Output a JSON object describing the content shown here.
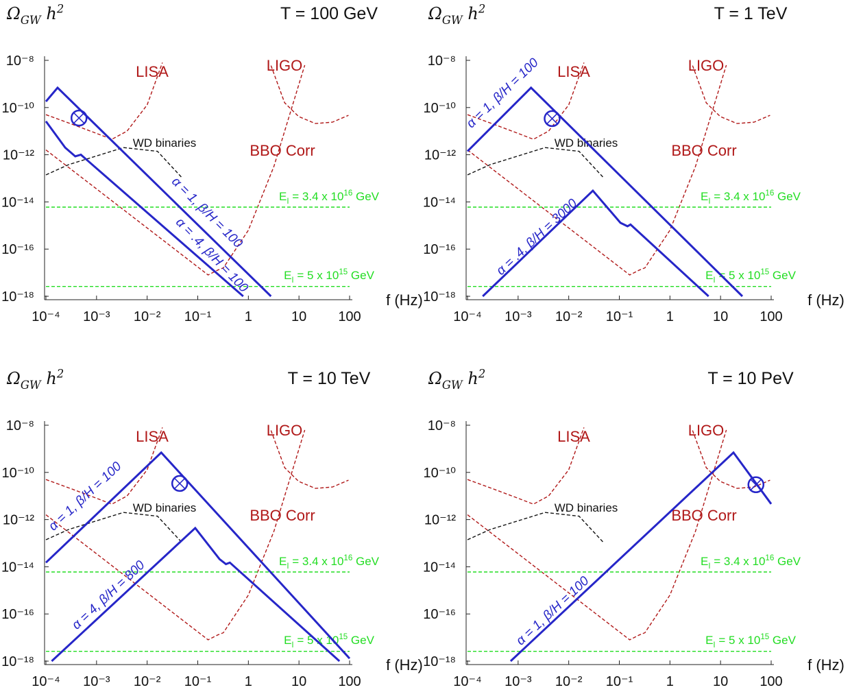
{
  "chart_data": [
    {
      "type": "line",
      "title": "T = 100 GeV",
      "y_label": [
        "Ω",
        "GW",
        " h",
        "2"
      ],
      "x_label": "f (Hz)",
      "xscale": "log",
      "yscale": "log",
      "xlim": [
        0.0001,
        100
      ],
      "ylim": [
        1e-18,
        1e-08
      ],
      "xticks": [
        {
          "value": 0.0001,
          "label": "10⁻⁴"
        },
        {
          "value": 0.001,
          "label": "10⁻³"
        },
        {
          "value": 0.01,
          "label": "10⁻²"
        },
        {
          "value": 0.1,
          "label": "10⁻¹"
        },
        1,
        10,
        100
      ],
      "yticks": [
        {
          "value": 1e-18,
          "label": "10⁻¹⁸"
        },
        {
          "value": 1e-16,
          "label": "10⁻¹⁶"
        },
        {
          "value": 1e-14,
          "label": "10⁻¹⁴"
        },
        {
          "value": 1e-12,
          "label": "10⁻¹²"
        },
        {
          "value": 1e-10,
          "label": "10⁻¹⁰"
        },
        {
          "value": 1e-08,
          "label": "10⁻⁸"
        }
      ],
      "series": [
        {
          "name": "LISA",
          "color": "#b01818",
          "dashed": true,
          "x": [
            0.0001,
            0.00032,
            0.001,
            0.002,
            0.004,
            0.01,
            0.02
          ],
          "values": [
            5e-11,
            2e-11,
            8e-12,
            4.5e-12,
            1e-11,
            1.3e-10,
            8e-09
          ]
        },
        {
          "name": "LIGO",
          "color": "#b01818",
          "dashed": true,
          "x": [
            2.8,
            5.2,
            9.8,
            21,
            46,
            95
          ],
          "values": [
            6e-09,
            1.6e-10,
            4.2e-11,
            2.1e-11,
            2.4e-11,
            4.7e-11
          ]
        },
        {
          "name": "BBO Corr",
          "color": "#b01818",
          "dashed": true,
          "x": [
            0.0001,
            0.16,
            0.25,
            0.32,
            1,
            3.2,
            13
          ],
          "values": [
            1.6e-12,
            8e-18,
            1.3e-17,
            1.6e-17,
            6.3e-16,
            3.2e-13,
            6.3e-09
          ]
        },
        {
          "name": "WD binaries",
          "color": "#111111",
          "dashed": true,
          "x": [
            0.0001,
            0.00028,
            0.0034,
            0.016,
            0.048
          ],
          "values": [
            1.4e-13,
            3.8e-13,
            2e-12,
            1.4e-12,
            1.1e-13
          ]
        },
        {
          "name": [
            "E",
            "I",
            " = 3.4 x 10",
            "16",
            " GeV"
          ],
          "color": "#22dd22",
          "dashed": true,
          "x": [
            0.0001,
            100
          ],
          "values": [
            6e-15,
            6e-15
          ]
        },
        {
          "name": [
            "E",
            "I",
            " = 5 x 10",
            "15",
            " GeV"
          ],
          "color": "#22dd22",
          "dashed": true,
          "x": [
            0.0001,
            100
          ],
          "values": [
            2.6e-18,
            2.6e-18
          ]
        },
        {
          "name": "α = 1, β/H = 100",
          "color": "#2626c8",
          "dashed": false,
          "x": [
            0.0001,
            0.00017,
            2.8
          ],
          "values": [
            1.8e-10,
            6.9e-10,
            1e-18
          ]
        },
        {
          "name": "α = .4, β/H = 100",
          "color": "#2626c8",
          "dashed": false,
          "x": [
            0.0001,
            0.00024,
            0.00038,
            0.00049,
            0.79
          ],
          "values": [
            2.6e-11,
            2e-12,
            8.5e-13,
            1e-12,
            1e-18
          ]
        }
      ],
      "markers": [
        {
          "x": 0.00045,
          "y": 3.6e-11
        }
      ]
    },
    {
      "type": "line",
      "title": "T = 1 TeV",
      "y_label": [
        "Ω",
        "GW",
        " h",
        "2"
      ],
      "x_label": "f (Hz)",
      "xscale": "log",
      "yscale": "log",
      "xlim": [
        0.0001,
        100
      ],
      "ylim": [
        1e-18,
        1e-08
      ],
      "xticks": [
        {
          "value": 0.0001,
          "label": "10⁻⁴"
        },
        {
          "value": 0.001,
          "label": "10⁻³"
        },
        {
          "value": 0.01,
          "label": "10⁻²"
        },
        {
          "value": 0.1,
          "label": "10⁻¹"
        },
        1,
        10,
        100
      ],
      "yticks": [
        {
          "value": 1e-18,
          "label": "10⁻¹⁸"
        },
        {
          "value": 1e-16,
          "label": "10⁻¹⁶"
        },
        {
          "value": 1e-14,
          "label": "10⁻¹⁴"
        },
        {
          "value": 1e-12,
          "label": "10⁻¹²"
        },
        {
          "value": 1e-10,
          "label": "10⁻¹⁰"
        },
        {
          "value": 1e-08,
          "label": "10⁻⁸"
        }
      ],
      "series": [
        {
          "name": "LISA",
          "color": "#b01818",
          "dashed": true,
          "x": [
            0.0001,
            0.00032,
            0.001,
            0.002,
            0.004,
            0.01,
            0.02
          ],
          "values": [
            5e-11,
            2e-11,
            8e-12,
            4.5e-12,
            1e-11,
            1.3e-10,
            8e-09
          ]
        },
        {
          "name": "LIGO",
          "color": "#b01818",
          "dashed": true,
          "x": [
            2.8,
            5.2,
            9.8,
            21,
            46,
            95
          ],
          "values": [
            6e-09,
            1.6e-10,
            4.2e-11,
            2.1e-11,
            2.4e-11,
            4.7e-11
          ]
        },
        {
          "name": "BBO Corr",
          "color": "#b01818",
          "dashed": true,
          "x": [
            0.0001,
            0.16,
            0.25,
            0.32,
            1,
            3.2,
            13
          ],
          "values": [
            1.6e-12,
            8e-18,
            1.3e-17,
            1.6e-17,
            6.3e-16,
            3.2e-13,
            6.3e-09
          ]
        },
        {
          "name": "WD binaries",
          "color": "#111111",
          "dashed": true,
          "x": [
            0.0001,
            0.00028,
            0.0034,
            0.016,
            0.048
          ],
          "values": [
            1.4e-13,
            3.8e-13,
            2e-12,
            1.4e-12,
            1.1e-13
          ]
        },
        {
          "name": [
            "E",
            "I",
            " = 3.4 x 10",
            "16",
            " GeV"
          ],
          "color": "#22dd22",
          "dashed": true,
          "x": [
            0.0001,
            100
          ],
          "values": [
            6e-15,
            6e-15
          ]
        },
        {
          "name": [
            "E",
            "I",
            " = 5 x 10",
            "15",
            " GeV"
          ],
          "color": "#22dd22",
          "dashed": true,
          "x": [
            0.0001,
            100
          ],
          "values": [
            2.6e-18,
            2.6e-18
          ]
        },
        {
          "name": "α = 1, β/H = 100",
          "color": "#2626c8",
          "dashed": false,
          "x": [
            0.0001,
            0.0018,
            27
          ],
          "values": [
            1.4e-12,
            6.9e-10,
            1e-18
          ]
        },
        {
          "name": "α = .4, β/H = 3000",
          "color": "#2626c8",
          "dashed": false,
          "x": [
            0.0002,
            0.03,
            0.105,
            0.145,
            0.166,
            5.8
          ],
          "values": [
            1e-18,
            3e-14,
            1.3e-15,
            9.3e-16,
            1.1e-15,
            1e-18
          ]
        }
      ],
      "markers": [
        {
          "x": 0.0047,
          "y": 3.4e-11
        }
      ]
    },
    {
      "type": "line",
      "title": "T = 10 TeV",
      "y_label": [
        "Ω",
        "GW",
        " h",
        "2"
      ],
      "x_label": "f (Hz)",
      "xscale": "log",
      "yscale": "log",
      "xlim": [
        0.0001,
        100
      ],
      "ylim": [
        1e-18,
        1e-08
      ],
      "xticks": [
        {
          "value": 0.0001,
          "label": "10⁻⁴"
        },
        {
          "value": 0.001,
          "label": "10⁻³"
        },
        {
          "value": 0.01,
          "label": "10⁻²"
        },
        {
          "value": 0.1,
          "label": "10⁻¹"
        },
        1,
        10,
        100
      ],
      "yticks": [
        {
          "value": 1e-18,
          "label": "10⁻¹⁸"
        },
        {
          "value": 1e-16,
          "label": "10⁻¹⁶"
        },
        {
          "value": 1e-14,
          "label": "10⁻¹⁴"
        },
        {
          "value": 1e-12,
          "label": "10⁻¹²"
        },
        {
          "value": 1e-10,
          "label": "10⁻¹⁰"
        },
        {
          "value": 1e-08,
          "label": "10⁻⁸"
        }
      ],
      "series": [
        {
          "name": "LISA",
          "color": "#b01818",
          "dashed": true,
          "x": [
            0.0001,
            0.00032,
            0.001,
            0.002,
            0.004,
            0.01,
            0.02
          ],
          "values": [
            5e-11,
            2e-11,
            8e-12,
            4.5e-12,
            1e-11,
            1.3e-10,
            8e-09
          ]
        },
        {
          "name": "LIGO",
          "color": "#b01818",
          "dashed": true,
          "x": [
            2.8,
            5.2,
            9.8,
            21,
            46,
            95
          ],
          "values": [
            6e-09,
            1.6e-10,
            4.2e-11,
            2.1e-11,
            2.4e-11,
            4.7e-11
          ]
        },
        {
          "name": "BBO Corr",
          "color": "#b01818",
          "dashed": true,
          "x": [
            0.0001,
            0.16,
            0.25,
            0.32,
            1,
            3.2,
            13
          ],
          "values": [
            1.6e-12,
            8e-18,
            1.3e-17,
            1.6e-17,
            6.3e-16,
            3.2e-13,
            6.3e-09
          ]
        },
        {
          "name": "WD binaries",
          "color": "#111111",
          "dashed": true,
          "x": [
            0.0001,
            0.00028,
            0.0034,
            0.016,
            0.048
          ],
          "values": [
            1.4e-13,
            3.8e-13,
            2e-12,
            1.4e-12,
            1.1e-13
          ]
        },
        {
          "name": [
            "E",
            "I",
            " = 3.4 x 10",
            "16",
            " GeV"
          ],
          "color": "#22dd22",
          "dashed": true,
          "x": [
            0.0001,
            100
          ],
          "values": [
            6e-15,
            6e-15
          ]
        },
        {
          "name": [
            "E",
            "I",
            " = 5 x 10",
            "15",
            " GeV"
          ],
          "color": "#22dd22",
          "dashed": true,
          "x": [
            0.0001,
            100
          ],
          "values": [
            2.6e-18,
            2.6e-18
          ]
        },
        {
          "name": "α = 1, β/H = 100",
          "color": "#2626c8",
          "dashed": false,
          "x": [
            0.0001,
            0.019,
            100
          ],
          "values": [
            1.5e-14,
            6.9e-10,
            1.3e-18
          ]
        },
        {
          "name": "α = 4, β/H = 800",
          "color": "#2626c8",
          "dashed": false,
          "x": [
            0.00013,
            0.089,
            0.27,
            0.36,
            0.43,
            63
          ],
          "values": [
            1e-18,
            4.4e-13,
            2.1e-14,
            1.3e-14,
            1.5e-14,
            1e-18
          ]
        }
      ],
      "markers": [
        {
          "x": 0.044,
          "y": 3.4e-11
        }
      ]
    },
    {
      "type": "line",
      "title": "T = 10 PeV",
      "y_label": [
        "Ω",
        "GW",
        " h",
        "2"
      ],
      "x_label": "f (Hz)",
      "xscale": "log",
      "yscale": "log",
      "xlim": [
        0.0001,
        100
      ],
      "ylim": [
        1e-18,
        1e-08
      ],
      "xticks": [
        {
          "value": 0.0001,
          "label": "10⁻⁴"
        },
        {
          "value": 0.001,
          "label": "10⁻³"
        },
        {
          "value": 0.01,
          "label": "10⁻²"
        },
        {
          "value": 0.1,
          "label": "10⁻¹"
        },
        1,
        10,
        100
      ],
      "yticks": [
        {
          "value": 1e-18,
          "label": "10⁻¹⁸"
        },
        {
          "value": 1e-16,
          "label": "10⁻¹⁶"
        },
        {
          "value": 1e-14,
          "label": "10⁻¹⁴"
        },
        {
          "value": 1e-12,
          "label": "10⁻¹²"
        },
        {
          "value": 1e-10,
          "label": "10⁻¹⁰"
        },
        {
          "value": 1e-08,
          "label": "10⁻⁸"
        }
      ],
      "series": [
        {
          "name": "LISA",
          "color": "#b01818",
          "dashed": true,
          "x": [
            0.0001,
            0.00032,
            0.001,
            0.002,
            0.004,
            0.01,
            0.02
          ],
          "values": [
            5e-11,
            2e-11,
            8e-12,
            4.5e-12,
            1e-11,
            1.3e-10,
            8e-09
          ]
        },
        {
          "name": "LIGO",
          "color": "#b01818",
          "dashed": true,
          "x": [
            2.8,
            5.2,
            9.8,
            21,
            46,
            95
          ],
          "values": [
            6e-09,
            1.6e-10,
            4.2e-11,
            2.1e-11,
            2.4e-11,
            4.7e-11
          ]
        },
        {
          "name": "BBO Corr",
          "color": "#b01818",
          "dashed": true,
          "x": [
            0.0001,
            0.16,
            0.25,
            0.32,
            1,
            3.2,
            13
          ],
          "values": [
            1.6e-12,
            8e-18,
            1.3e-17,
            1.6e-17,
            6.3e-16,
            3.2e-13,
            6.3e-09
          ]
        },
        {
          "name": "WD binaries",
          "color": "#111111",
          "dashed": true,
          "x": [
            0.0001,
            0.00028,
            0.0034,
            0.016,
            0.048
          ],
          "values": [
            1.4e-13,
            3.8e-13,
            2e-12,
            1.4e-12,
            1.1e-13
          ]
        },
        {
          "name": [
            "E",
            "I",
            " = 3.4 x 10",
            "16",
            " GeV"
          ],
          "color": "#22dd22",
          "dashed": true,
          "x": [
            0.0001,
            100
          ],
          "values": [
            6e-15,
            6e-15
          ]
        },
        {
          "name": [
            "E",
            "I",
            " = 5 x 10",
            "15",
            " GeV"
          ],
          "color": "#22dd22",
          "dashed": true,
          "x": [
            0.0001,
            100
          ],
          "values": [
            2.6e-18,
            2.6e-18
          ]
        },
        {
          "name": "α = 1, β/H = 100",
          "color": "#2626c8",
          "dashed": false,
          "x": [
            0.00071,
            18,
            100
          ],
          "values": [
            1e-18,
            6.9e-10,
            4.6e-12
          ]
        }
      ],
      "markers": [
        {
          "x": 50,
          "y": 3e-11
        }
      ]
    }
  ]
}
